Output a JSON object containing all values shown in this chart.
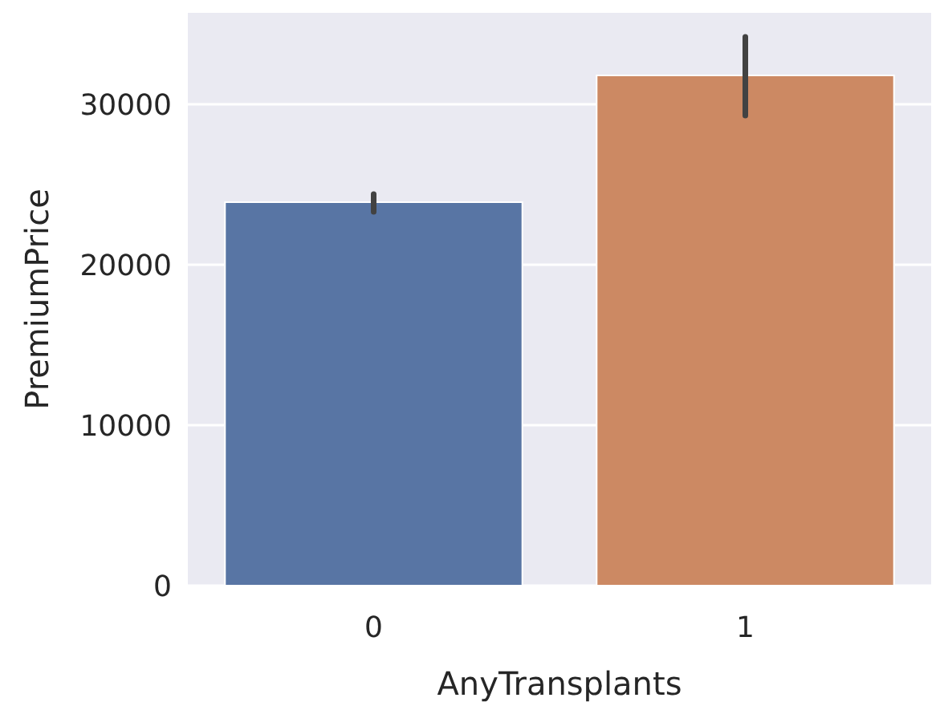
{
  "chart_data": {
    "type": "bar",
    "xlabel": "AnyTransplants",
    "ylabel": "PremiumPrice",
    "categories": [
      "0",
      "1"
    ],
    "values": [
      23900,
      31800
    ],
    "colors": [
      "#5875a4",
      "#cc8963"
    ],
    "errors": [
      [
        23300,
        24400
      ],
      [
        29300,
        34200
      ]
    ],
    "ylim": [
      0,
      35700
    ],
    "yticks": [
      0,
      10000,
      20000,
      30000
    ],
    "grid": "y"
  }
}
